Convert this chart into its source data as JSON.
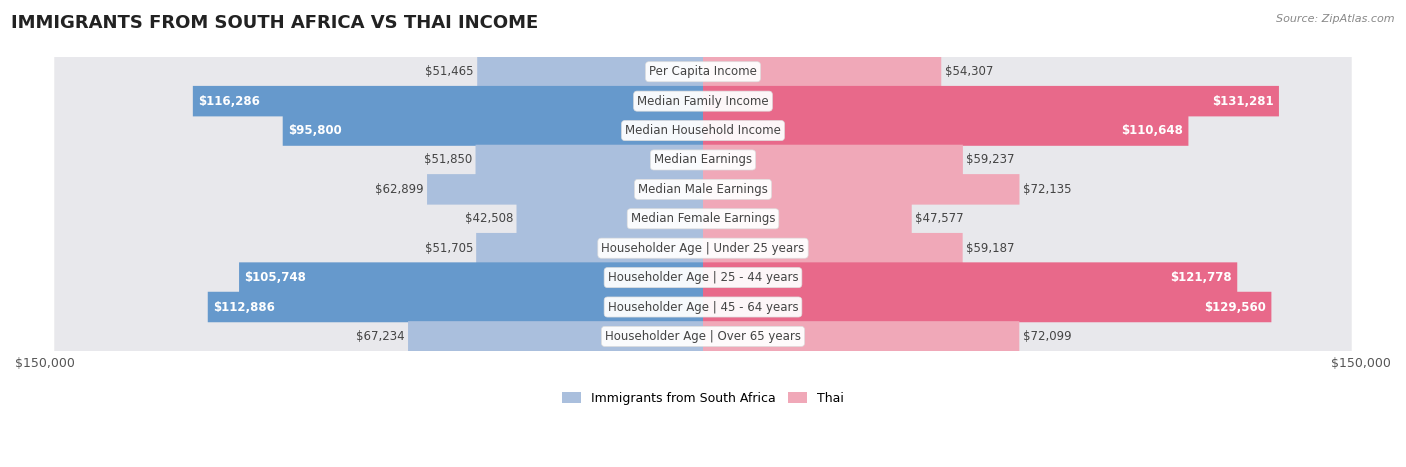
{
  "title": "IMMIGRANTS FROM SOUTH AFRICA VS THAI INCOME",
  "source": "Source: ZipAtlas.com",
  "categories": [
    "Per Capita Income",
    "Median Family Income",
    "Median Household Income",
    "Median Earnings",
    "Median Male Earnings",
    "Median Female Earnings",
    "Householder Age | Under 25 years",
    "Householder Age | 25 - 44 years",
    "Householder Age | 45 - 64 years",
    "Householder Age | Over 65 years"
  ],
  "left_values": [
    51465,
    116286,
    95800,
    51850,
    62899,
    42508,
    51705,
    105748,
    112886,
    67234
  ],
  "right_values": [
    54307,
    131281,
    110648,
    59237,
    72135,
    47577,
    59187,
    121778,
    129560,
    72099
  ],
  "left_labels": [
    "$51,465",
    "$116,286",
    "$95,800",
    "$51,850",
    "$62,899",
    "$42,508",
    "$51,705",
    "$105,748",
    "$112,886",
    "$67,234"
  ],
  "right_labels": [
    "$54,307",
    "$131,281",
    "$110,648",
    "$59,237",
    "$72,135",
    "$47,577",
    "$59,187",
    "$121,778",
    "$129,560",
    "$72,099"
  ],
  "left_color_large": "#6699cc",
  "left_color_small": "#aabfdd",
  "right_color_large": "#e8698a",
  "right_color_small": "#f0a8b8",
  "max_val": 150000,
  "row_bg_light": "#f5f5f5",
  "row_bg_dark": "#e8e8ec",
  "legend_left": "Immigrants from South Africa",
  "legend_right": "Thai",
  "background_color": "#ffffff",
  "title_fontsize": 13,
  "label_fontsize": 8.5,
  "category_fontsize": 8.5,
  "large_threshold": 90000
}
